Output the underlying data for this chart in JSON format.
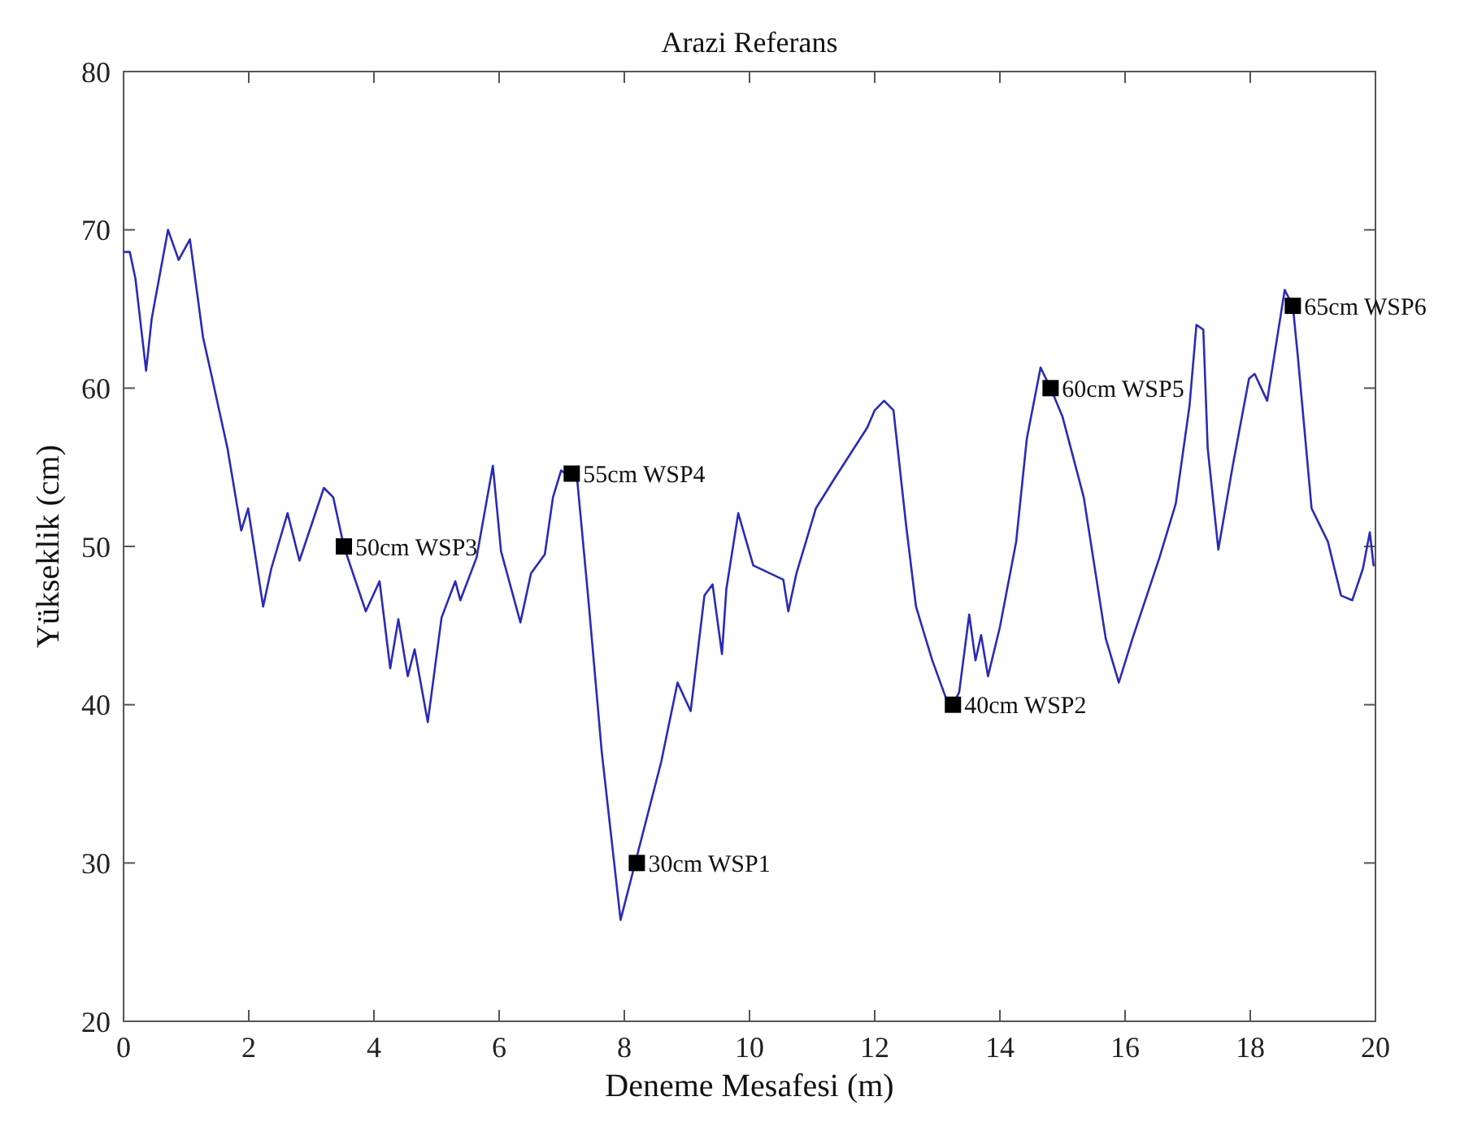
{
  "chart_data": {
    "type": "line",
    "title": "Arazi Referans",
    "xlabel": "Deneme Mesafesi (m)",
    "ylabel": "Yükseklik (cm)",
    "xlim": [
      0,
      20
    ],
    "xticks": [
      0,
      2,
      4,
      6,
      8,
      10,
      12,
      14,
      16,
      18,
      20
    ],
    "ylim": [
      20,
      80
    ],
    "yticks": [
      20,
      30,
      40,
      50,
      60,
      70,
      80
    ],
    "grid": false,
    "series": [
      {
        "type": "line",
        "color": "#2a2ab8",
        "marker": "none",
        "line_style": "solid",
        "x": [
          0.02,
          0.1,
          0.19,
          0.36,
          0.45,
          0.71,
          0.88,
          1.06,
          1.27,
          1.4,
          1.66,
          1.88,
          1.99,
          2.23,
          2.36,
          2.62,
          2.81,
          3.2,
          3.35,
          3.52,
          3.87,
          4.09,
          4.26,
          4.39,
          4.54,
          4.65,
          4.86,
          5.08,
          5.3,
          5.38,
          5.64,
          5.9,
          6.03,
          6.34,
          6.51,
          6.73,
          6.86,
          6.99,
          7.25,
          7.42,
          7.64,
          7.94,
          8.2,
          8.59,
          8.85,
          9.06,
          9.28,
          9.41,
          9.56,
          9.63,
          9.82,
          10.06,
          10.54,
          10.62,
          10.75,
          11.06,
          11.36,
          11.88,
          12.0,
          12.15,
          12.3,
          12.5,
          12.66,
          12.92,
          13.14,
          13.25,
          13.35,
          13.51,
          13.61,
          13.7,
          13.81,
          14.0,
          14.26,
          14.43,
          14.65,
          14.81,
          15.0,
          15.34,
          15.69,
          15.9,
          16.12,
          16.55,
          16.81,
          17.03,
          17.14,
          17.25,
          17.32,
          17.49,
          17.72,
          17.98,
          18.07,
          18.27,
          18.55,
          18.68,
          18.76,
          18.98,
          19.24,
          19.45,
          19.63,
          19.8,
          19.91,
          19.97
        ],
        "values": [
          68.6,
          68.6,
          66.9,
          61.1,
          64.4,
          70,
          68.1,
          69.4,
          63.2,
          60.9,
          56.2,
          51,
          52.4,
          46.2,
          48.6,
          52.1,
          49.1,
          53.7,
          53.1,
          50,
          45.9,
          47.8,
          42.3,
          45.4,
          41.8,
          43.5,
          38.9,
          45.5,
          47.8,
          46.6,
          49.3,
          55.1,
          49.7,
          45.2,
          48.3,
          49.5,
          53.1,
          54.8,
          54.1,
          46.9,
          37,
          26.4,
          30.4,
          36.4,
          41.4,
          39.6,
          46.9,
          47.6,
          43.2,
          47.3,
          52.1,
          48.8,
          47.9,
          45.9,
          48.3,
          52.4,
          54.3,
          57.5,
          58.6,
          59.2,
          58.6,
          51.4,
          46.2,
          42.8,
          40.4,
          40,
          40.8,
          45.7,
          42.8,
          44.4,
          41.8,
          44.9,
          50.3,
          56.8,
          61.3,
          60,
          58.2,
          53.1,
          44.2,
          41.4,
          44.2,
          49.3,
          52.7,
          58.9,
          64,
          63.7,
          56.2,
          49.8,
          55.1,
          60.6,
          60.9,
          59.2,
          66.2,
          65.2,
          62,
          52.4,
          50.3,
          46.9,
          46.6,
          48.6,
          50.9,
          48.8
        ]
      },
      {
        "type": "scatter",
        "color": "#000000",
        "marker": "square",
        "x": [
          8.2,
          13.25,
          3.52,
          7.16,
          14.81,
          18.68
        ],
        "values": [
          30,
          40,
          50,
          54.6,
          60,
          65.2
        ]
      }
    ],
    "annotations": [
      {
        "text": "30cm WSP1",
        "x": 8.2,
        "y": 30
      },
      {
        "text": "40cm WSP2",
        "x": 13.25,
        "y": 40
      },
      {
        "text": "50cm WSP3",
        "x": 3.52,
        "y": 50
      },
      {
        "text": "55cm WSP4",
        "x": 7.16,
        "y": 54.6
      },
      {
        "text": "60cm WSP5",
        "x": 14.81,
        "y": 60
      },
      {
        "text": "65cm WSP6",
        "x": 18.68,
        "y": 65.2
      }
    ]
  }
}
